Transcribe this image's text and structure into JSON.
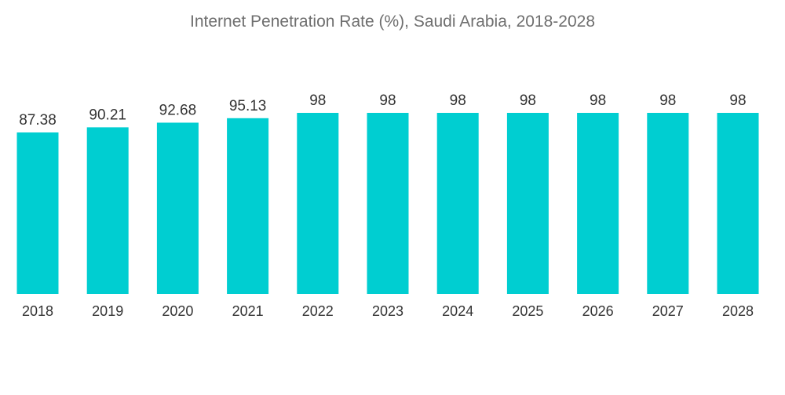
{
  "chart_data": {
    "type": "bar",
    "title": "Internet Penetration Rate (%), Saudi Arabia, 2018-2028",
    "xlabel": "",
    "ylabel": "",
    "categories": [
      "2018",
      "2019",
      "2020",
      "2021",
      "2022",
      "2023",
      "2024",
      "2025",
      "2026",
      "2027",
      "2028"
    ],
    "values": [
      87.38,
      90.21,
      92.68,
      95.13,
      98,
      98,
      98,
      98,
      98,
      98,
      98
    ],
    "value_labels": [
      "87.38",
      "90.21",
      "92.68",
      "95.13",
      "98",
      "98",
      "98",
      "98",
      "98",
      "98",
      "98"
    ],
    "ylim": [
      0,
      98
    ],
    "grid": false,
    "bar_color": "#00CED1"
  }
}
